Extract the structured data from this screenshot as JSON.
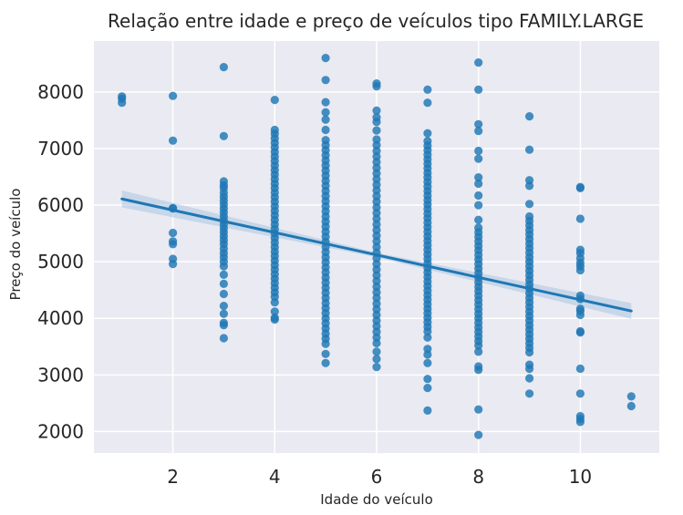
{
  "chart_data": {
    "type": "scatter",
    "title": "Relação entre idade e preço de veículos tipo FAMILY.LARGE",
    "xlabel": "Idade do veículo",
    "ylabel": "Preço do veículo",
    "xlim": [
      0.45,
      11.55
    ],
    "ylim": [
      1620,
      8900
    ],
    "xticks": [
      2,
      4,
      6,
      8,
      10
    ],
    "yticks": [
      2000,
      3000,
      4000,
      5000,
      6000,
      7000,
      8000
    ],
    "grid": true,
    "point_color": "#1f77b4",
    "line_color": "#1f77b4",
    "band_color": "#a9c6e2",
    "background_color": "#eaeaf2",
    "regression": {
      "x": [
        1,
        11
      ],
      "y": [
        6110,
        4130
      ]
    },
    "confidence_band": {
      "x": [
        1,
        6,
        11
      ],
      "lower": [
        5960,
        5080,
        3990
      ],
      "upper": [
        6260,
        5160,
        4270
      ]
    },
    "points": [
      [
        1,
        7920
      ],
      [
        1,
        7880
      ],
      [
        1,
        7810
      ],
      [
        2,
        7930
      ],
      [
        2,
        7140
      ],
      [
        2,
        5950
      ],
      [
        2,
        5940
      ],
      [
        2,
        5510
      ],
      [
        2,
        5360
      ],
      [
        2,
        5310
      ],
      [
        2,
        5050
      ],
      [
        2,
        4960
      ],
      [
        3,
        8440
      ],
      [
        3,
        7220
      ],
      [
        3,
        6420
      ],
      [
        3,
        6350
      ],
      [
        3,
        6300
      ],
      [
        3,
        6220
      ],
      [
        3,
        6150
      ],
      [
        3,
        6080
      ],
      [
        3,
        6010
      ],
      [
        3,
        5940
      ],
      [
        3,
        5870
      ],
      [
        3,
        5800
      ],
      [
        3,
        5730
      ],
      [
        3,
        5660
      ],
      [
        3,
        5590
      ],
      [
        3,
        5520
      ],
      [
        3,
        5450
      ],
      [
        3,
        5380
      ],
      [
        3,
        5310
      ],
      [
        3,
        5230
      ],
      [
        3,
        5150
      ],
      [
        3,
        5080
      ],
      [
        3,
        5000
      ],
      [
        3,
        4920
      ],
      [
        3,
        4770
      ],
      [
        3,
        4610
      ],
      [
        3,
        4430
      ],
      [
        3,
        4220
      ],
      [
        3,
        4080
      ],
      [
        3,
        3920
      ],
      [
        3,
        3880
      ],
      [
        3,
        3650
      ],
      [
        4,
        7860
      ],
      [
        4,
        7330
      ],
      [
        4,
        7260
      ],
      [
        4,
        7180
      ],
      [
        4,
        7100
      ],
      [
        4,
        7020
      ],
      [
        4,
        6940
      ],
      [
        4,
        6860
      ],
      [
        4,
        6780
      ],
      [
        4,
        6700
      ],
      [
        4,
        6620
      ],
      [
        4,
        6540
      ],
      [
        4,
        6460
      ],
      [
        4,
        6380
      ],
      [
        4,
        6300
      ],
      [
        4,
        6220
      ],
      [
        4,
        6140
      ],
      [
        4,
        6060
      ],
      [
        4,
        5980
      ],
      [
        4,
        5900
      ],
      [
        4,
        5820
      ],
      [
        4,
        5740
      ],
      [
        4,
        5660
      ],
      [
        4,
        5580
      ],
      [
        4,
        5500
      ],
      [
        4,
        5420
      ],
      [
        4,
        5340
      ],
      [
        4,
        5260
      ],
      [
        4,
        5180
      ],
      [
        4,
        5100
      ],
      [
        4,
        5020
      ],
      [
        4,
        4940
      ],
      [
        4,
        4860
      ],
      [
        4,
        4780
      ],
      [
        4,
        4700
      ],
      [
        4,
        4620
      ],
      [
        4,
        4540
      ],
      [
        4,
        4460
      ],
      [
        4,
        4380
      ],
      [
        4,
        4280
      ],
      [
        4,
        4120
      ],
      [
        4,
        4010
      ],
      [
        4,
        3980
      ],
      [
        5,
        8600
      ],
      [
        5,
        8210
      ],
      [
        5,
        7820
      ],
      [
        5,
        7640
      ],
      [
        5,
        7510
      ],
      [
        5,
        7330
      ],
      [
        5,
        7150
      ],
      [
        5,
        7060
      ],
      [
        5,
        6970
      ],
      [
        5,
        6880
      ],
      [
        5,
        6790
      ],
      [
        5,
        6700
      ],
      [
        5,
        6610
      ],
      [
        5,
        6520
      ],
      [
        5,
        6430
      ],
      [
        5,
        6340
      ],
      [
        5,
        6250
      ],
      [
        5,
        6160
      ],
      [
        5,
        6070
      ],
      [
        5,
        5980
      ],
      [
        5,
        5890
      ],
      [
        5,
        5800
      ],
      [
        5,
        5710
      ],
      [
        5,
        5620
      ],
      [
        5,
        5530
      ],
      [
        5,
        5440
      ],
      [
        5,
        5350
      ],
      [
        5,
        5260
      ],
      [
        5,
        5170
      ],
      [
        5,
        5080
      ],
      [
        5,
        4990
      ],
      [
        5,
        4900
      ],
      [
        5,
        4810
      ],
      [
        5,
        4720
      ],
      [
        5,
        4630
      ],
      [
        5,
        4540
      ],
      [
        5,
        4450
      ],
      [
        5,
        4360
      ],
      [
        5,
        4270
      ],
      [
        5,
        4180
      ],
      [
        5,
        4090
      ],
      [
        5,
        4000
      ],
      [
        5,
        3910
      ],
      [
        5,
        3820
      ],
      [
        5,
        3730
      ],
      [
        5,
        3640
      ],
      [
        5,
        3550
      ],
      [
        5,
        3370
      ],
      [
        5,
        3210
      ],
      [
        6,
        8150
      ],
      [
        6,
        8100
      ],
      [
        6,
        7670
      ],
      [
        6,
        7550
      ],
      [
        6,
        7470
      ],
      [
        6,
        7320
      ],
      [
        6,
        7160
      ],
      [
        6,
        7060
      ],
      [
        6,
        6960
      ],
      [
        6,
        6860
      ],
      [
        6,
        6760
      ],
      [
        6,
        6660
      ],
      [
        6,
        6560
      ],
      [
        6,
        6460
      ],
      [
        6,
        6360
      ],
      [
        6,
        6260
      ],
      [
        6,
        6160
      ],
      [
        6,
        6060
      ],
      [
        6,
        5960
      ],
      [
        6,
        5860
      ],
      [
        6,
        5760
      ],
      [
        6,
        5660
      ],
      [
        6,
        5560
      ],
      [
        6,
        5460
      ],
      [
        6,
        5360
      ],
      [
        6,
        5260
      ],
      [
        6,
        5160
      ],
      [
        6,
        5060
      ],
      [
        6,
        4960
      ],
      [
        6,
        4860
      ],
      [
        6,
        4760
      ],
      [
        6,
        4660
      ],
      [
        6,
        4560
      ],
      [
        6,
        4460
      ],
      [
        6,
        4360
      ],
      [
        6,
        4260
      ],
      [
        6,
        4160
      ],
      [
        6,
        4060
      ],
      [
        6,
        3960
      ],
      [
        6,
        3860
      ],
      [
        6,
        3760
      ],
      [
        6,
        3660
      ],
      [
        6,
        3560
      ],
      [
        6,
        3410
      ],
      [
        6,
        3280
      ],
      [
        6,
        3140
      ],
      [
        7,
        8040
      ],
      [
        7,
        7810
      ],
      [
        7,
        7270
      ],
      [
        7,
        7130
      ],
      [
        7,
        7050
      ],
      [
        7,
        6970
      ],
      [
        7,
        6890
      ],
      [
        7,
        6810
      ],
      [
        7,
        6730
      ],
      [
        7,
        6650
      ],
      [
        7,
        6570
      ],
      [
        7,
        6490
      ],
      [
        7,
        6410
      ],
      [
        7,
        6330
      ],
      [
        7,
        6250
      ],
      [
        7,
        6170
      ],
      [
        7,
        6090
      ],
      [
        7,
        6010
      ],
      [
        7,
        5930
      ],
      [
        7,
        5850
      ],
      [
        7,
        5770
      ],
      [
        7,
        5690
      ],
      [
        7,
        5610
      ],
      [
        7,
        5530
      ],
      [
        7,
        5450
      ],
      [
        7,
        5370
      ],
      [
        7,
        5290
      ],
      [
        7,
        5210
      ],
      [
        7,
        5130
      ],
      [
        7,
        5050
      ],
      [
        7,
        4970
      ],
      [
        7,
        4890
      ],
      [
        7,
        4810
      ],
      [
        7,
        4730
      ],
      [
        7,
        4650
      ],
      [
        7,
        4570
      ],
      [
        7,
        4490
      ],
      [
        7,
        4410
      ],
      [
        7,
        4330
      ],
      [
        7,
        4250
      ],
      [
        7,
        4170
      ],
      [
        7,
        4090
      ],
      [
        7,
        4010
      ],
      [
        7,
        3930
      ],
      [
        7,
        3850
      ],
      [
        7,
        3770
      ],
      [
        7,
        3660
      ],
      [
        7,
        3460
      ],
      [
        7,
        3360
      ],
      [
        7,
        3210
      ],
      [
        7,
        2930
      ],
      [
        7,
        2770
      ],
      [
        7,
        2370
      ],
      [
        8,
        8520
      ],
      [
        8,
        8040
      ],
      [
        8,
        7430
      ],
      [
        8,
        7310
      ],
      [
        8,
        6960
      ],
      [
        8,
        6820
      ],
      [
        8,
        6490
      ],
      [
        8,
        6380
      ],
      [
        8,
        6170
      ],
      [
        8,
        6000
      ],
      [
        8,
        5740
      ],
      [
        8,
        5600
      ],
      [
        8,
        5520
      ],
      [
        8,
        5440
      ],
      [
        8,
        5360
      ],
      [
        8,
        5280
      ],
      [
        8,
        5200
      ],
      [
        8,
        5120
      ],
      [
        8,
        5040
      ],
      [
        8,
        4960
      ],
      [
        8,
        4880
      ],
      [
        8,
        4800
      ],
      [
        8,
        4720
      ],
      [
        8,
        4640
      ],
      [
        8,
        4560
      ],
      [
        8,
        4480
      ],
      [
        8,
        4400
      ],
      [
        8,
        4320
      ],
      [
        8,
        4240
      ],
      [
        8,
        4160
      ],
      [
        8,
        4080
      ],
      [
        8,
        4000
      ],
      [
        8,
        3920
      ],
      [
        8,
        3840
      ],
      [
        8,
        3760
      ],
      [
        8,
        3680
      ],
      [
        8,
        3600
      ],
      [
        8,
        3520
      ],
      [
        8,
        3410
      ],
      [
        8,
        3150
      ],
      [
        8,
        3090
      ],
      [
        8,
        2390
      ],
      [
        8,
        1940
      ],
      [
        9,
        7570
      ],
      [
        9,
        6980
      ],
      [
        9,
        6440
      ],
      [
        9,
        6340
      ],
      [
        9,
        6020
      ],
      [
        9,
        5800
      ],
      [
        9,
        5720
      ],
      [
        9,
        5640
      ],
      [
        9,
        5560
      ],
      [
        9,
        5480
      ],
      [
        9,
        5400
      ],
      [
        9,
        5320
      ],
      [
        9,
        5240
      ],
      [
        9,
        5160
      ],
      [
        9,
        5080
      ],
      [
        9,
        5000
      ],
      [
        9,
        4920
      ],
      [
        9,
        4840
      ],
      [
        9,
        4760
      ],
      [
        9,
        4680
      ],
      [
        9,
        4600
      ],
      [
        9,
        4520
      ],
      [
        9,
        4440
      ],
      [
        9,
        4360
      ],
      [
        9,
        4280
      ],
      [
        9,
        4200
      ],
      [
        9,
        4120
      ],
      [
        9,
        4040
      ],
      [
        9,
        3960
      ],
      [
        9,
        3880
      ],
      [
        9,
        3800
      ],
      [
        9,
        3720
      ],
      [
        9,
        3640
      ],
      [
        9,
        3560
      ],
      [
        9,
        3480
      ],
      [
        9,
        3400
      ],
      [
        9,
        3180
      ],
      [
        9,
        3110
      ],
      [
        9,
        2940
      ],
      [
        9,
        2670
      ],
      [
        10,
        6320
      ],
      [
        10,
        6300
      ],
      [
        10,
        5760
      ],
      [
        10,
        5210
      ],
      [
        10,
        5150
      ],
      [
        10,
        5060
      ],
      [
        10,
        4980
      ],
      [
        10,
        4920
      ],
      [
        10,
        4850
      ],
      [
        10,
        4400
      ],
      [
        10,
        4340
      ],
      [
        10,
        4170
      ],
      [
        10,
        4130
      ],
      [
        10,
        4060
      ],
      [
        10,
        3770
      ],
      [
        10,
        3750
      ],
      [
        10,
        3110
      ],
      [
        10,
        2670
      ],
      [
        10,
        2270
      ],
      [
        10,
        2220
      ],
      [
        10,
        2170
      ],
      [
        11,
        2620
      ],
      [
        11,
        2450
      ]
    ]
  }
}
